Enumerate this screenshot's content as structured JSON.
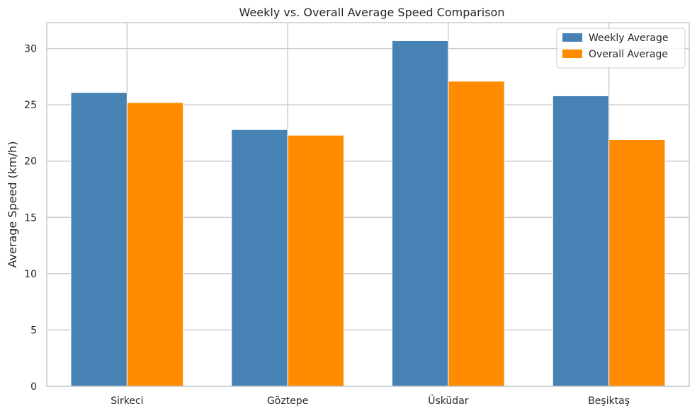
{
  "chart_data": {
    "type": "bar",
    "title": "Weekly vs. Overall Average Speed Comparison",
    "xlabel": "",
    "ylabel": "Average Speed (km/h)",
    "categories": [
      "Sirkeci",
      "Göztepe",
      "Üsküdar",
      "Beşiktaş"
    ],
    "series": [
      {
        "name": "Weekly Average",
        "color": "#4682b4",
        "values": [
          26.1,
          22.8,
          30.7,
          25.8
        ]
      },
      {
        "name": "Overall Average",
        "color": "#ff8c00",
        "values": [
          25.2,
          22.3,
          27.1,
          21.9
        ]
      }
    ],
    "ylim": [
      0,
      32.3
    ],
    "yticks": [
      "0",
      "5",
      "10",
      "15",
      "20",
      "25",
      "30"
    ],
    "grid": true,
    "legend": "top-right"
  }
}
